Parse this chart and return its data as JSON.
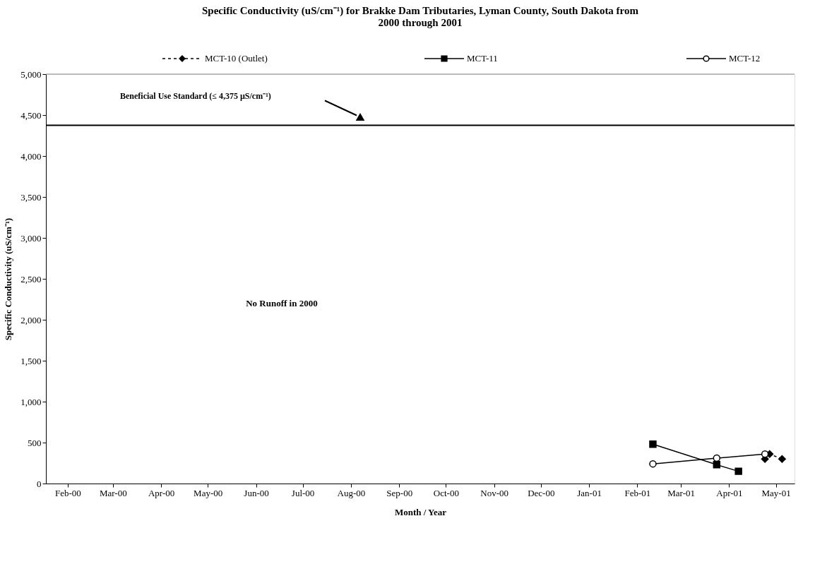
{
  "chart_data": {
    "type": "line",
    "title": "Specific Conductivity (uS/cm⁻¹) for Brakke Dam Tributaries, Lyman County, South Dakota from 2000 through 2001",
    "xlabel": "Month / Year",
    "ylabel": "Specific Conductivity (uS/cm⁻¹)",
    "series": [
      {
        "name": "MCT-10 (Outlet)",
        "color": "#000000",
        "marker": "diamond",
        "line_style": "dashed",
        "x": [
          "2001-04-24",
          "2001-04-27",
          "2001-05-05"
        ],
        "values": [
          300,
          360,
          300
        ]
      },
      {
        "name": "MCT-11",
        "color": "#000000",
        "marker": "square",
        "line_style": "solid",
        "x": [
          "2001-02-11",
          "2001-03-24",
          "2001-04-07"
        ],
        "values": [
          480,
          230,
          150
        ]
      },
      {
        "name": "MCT-12",
        "color": "#000000",
        "marker": "circle",
        "line_style": "solid",
        "x": [
          "2001-02-11",
          "2001-03-24",
          "2001-04-24"
        ],
        "values": [
          240,
          310,
          360
        ]
      }
    ],
    "xlim": [
      "2000-01-18",
      "2001-05-13"
    ],
    "xticks": [
      {
        "value": "2000-02-01",
        "label": "Feb-00"
      },
      {
        "value": "2000-03-01",
        "label": "Mar-00"
      },
      {
        "value": "2000-04-01",
        "label": "Apr-00"
      },
      {
        "value": "2000-05-01",
        "label": "May-00"
      },
      {
        "value": "2000-06-01",
        "label": "Jun-00"
      },
      {
        "value": "2000-07-01",
        "label": "Jul-00"
      },
      {
        "value": "2000-08-01",
        "label": "Aug-00"
      },
      {
        "value": "2000-09-01",
        "label": "Sep-00"
      },
      {
        "value": "2000-10-01",
        "label": "Oct-00"
      },
      {
        "value": "2000-11-01",
        "label": "Nov-00"
      },
      {
        "value": "2000-12-01",
        "label": "Dec-00"
      },
      {
        "value": "2001-01-01",
        "label": "Jan-01"
      },
      {
        "value": "2001-02-01",
        "label": "Feb-01"
      },
      {
        "value": "2001-03-01",
        "label": "Mar-01"
      },
      {
        "value": "2001-04-01",
        "label": "Apr-01"
      },
      {
        "value": "2001-05-01",
        "label": "May-01"
      }
    ],
    "ylim": [
      0,
      5000
    ],
    "yticks": [
      {
        "value": 0,
        "label": "0"
      },
      {
        "value": 500,
        "label": "500"
      },
      {
        "value": 1000,
        "label": "1,000"
      },
      {
        "value": 1500,
        "label": "1,500"
      },
      {
        "value": 2000,
        "label": "2,000"
      },
      {
        "value": 2500,
        "label": "2,500"
      },
      {
        "value": 3000,
        "label": "3,000"
      },
      {
        "value": 3500,
        "label": "3,500"
      },
      {
        "value": 4000,
        "label": "4,000"
      },
      {
        "value": 4500,
        "label": "4,500"
      },
      {
        "value": 5000,
        "label": "5,000"
      }
    ],
    "ref_lines": [
      {
        "axis": "y",
        "value": 4375,
        "label": "Beneficial Use Standard (≤ 4,375 µS/cm⁻¹)",
        "color": "#000000"
      }
    ],
    "annotations": [
      "No Runoff in 2000"
    ],
    "grid": false,
    "legend": "top"
  }
}
